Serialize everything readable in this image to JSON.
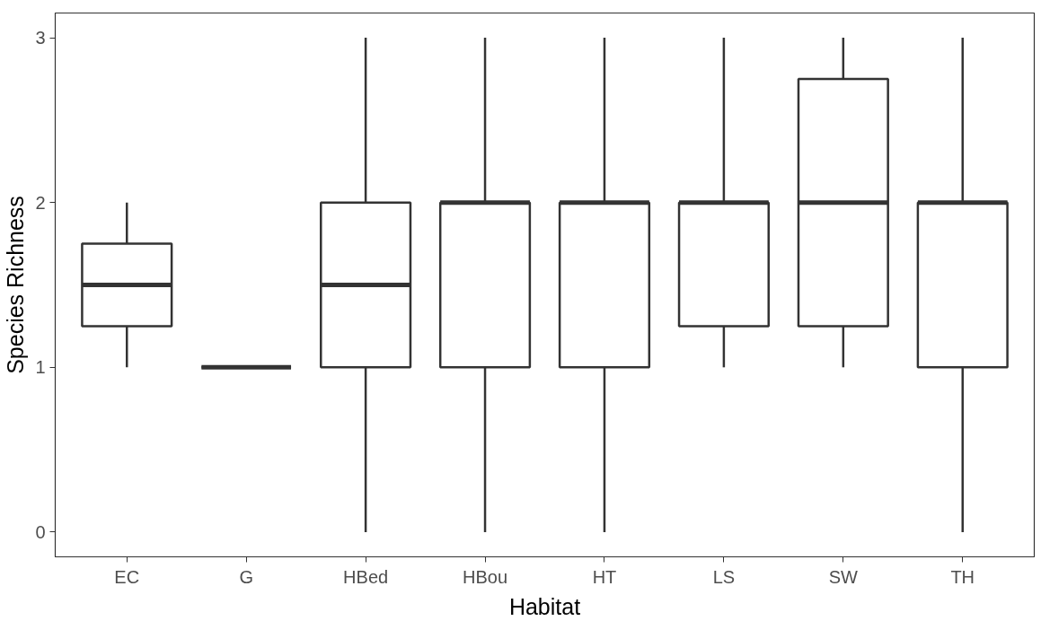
{
  "chart_data": {
    "type": "box",
    "xlabel": "Habitat",
    "ylabel": "Species Richness",
    "categories": [
      "EC",
      "G",
      "HBed",
      "HBou",
      "HT",
      "LS",
      "SW",
      "TH"
    ],
    "boxes": [
      {
        "low": 1,
        "q1": 1.25,
        "median": 1.5,
        "q3": 1.75,
        "high": 2
      },
      {
        "low": 1,
        "q1": 1,
        "median": 1,
        "q3": 1,
        "high": 1
      },
      {
        "low": 0,
        "q1": 1,
        "median": 1.5,
        "q3": 2,
        "high": 3
      },
      {
        "low": 0,
        "q1": 1,
        "median": 2,
        "q3": 2,
        "high": 3
      },
      {
        "low": 0,
        "q1": 1,
        "median": 2,
        "q3": 2,
        "high": 3
      },
      {
        "low": 1,
        "q1": 1.25,
        "median": 2,
        "q3": 2,
        "high": 3
      },
      {
        "low": 1,
        "q1": 1.25,
        "median": 2,
        "q3": 2.75,
        "high": 3
      },
      {
        "low": 0,
        "q1": 1,
        "median": 2,
        "q3": 2,
        "high": 3
      }
    ],
    "color": "#333333",
    "ylim": [
      -0.15,
      3.15
    ],
    "yticks": [
      0,
      1,
      2,
      3
    ],
    "grid": false
  }
}
